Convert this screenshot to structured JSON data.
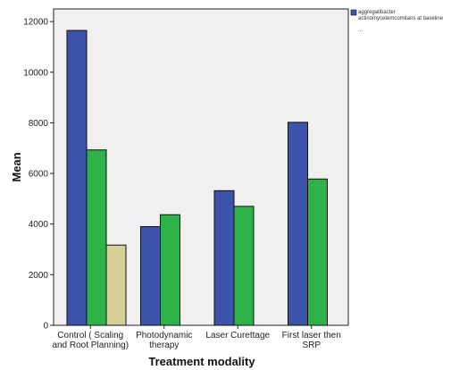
{
  "chart_data": {
    "type": "bar",
    "title": "",
    "xlabel": "Treatment modality",
    "ylabel": "Mean",
    "ylim": [
      0,
      12500
    ],
    "yticks": [
      0,
      2000,
      4000,
      6000,
      8000,
      10000,
      12000
    ],
    "grid": false,
    "legend_position": "top-right",
    "categories": [
      [
        "Control ( Scaling",
        "and Root Planning)"
      ],
      [
        "Photodynamic",
        "therapy"
      ],
      [
        "Laser Curettage"
      ],
      [
        "First laser then",
        "SRP"
      ]
    ],
    "series": [
      {
        "name": "aggregatibacter actinomycetemcomitans at baseline",
        "color": "#3b53a8",
        "values": [
          11650,
          3900,
          5320,
          8020
        ]
      },
      {
        "name": "",
        "color": "#2eb24a",
        "values": [
          6930,
          4370,
          4700,
          5780
        ]
      },
      {
        "name": "",
        "color": "#d6cf98",
        "values": [
          3170,
          null,
          null,
          null
        ]
      }
    ]
  },
  "legend": {
    "line1": "aggregatibacter",
    "line2": "actinomycetemcomitans at baseline",
    "line3": "..."
  },
  "colors": {
    "plot_background": "#f0f0f0",
    "bar_stroke": "#111111"
  }
}
